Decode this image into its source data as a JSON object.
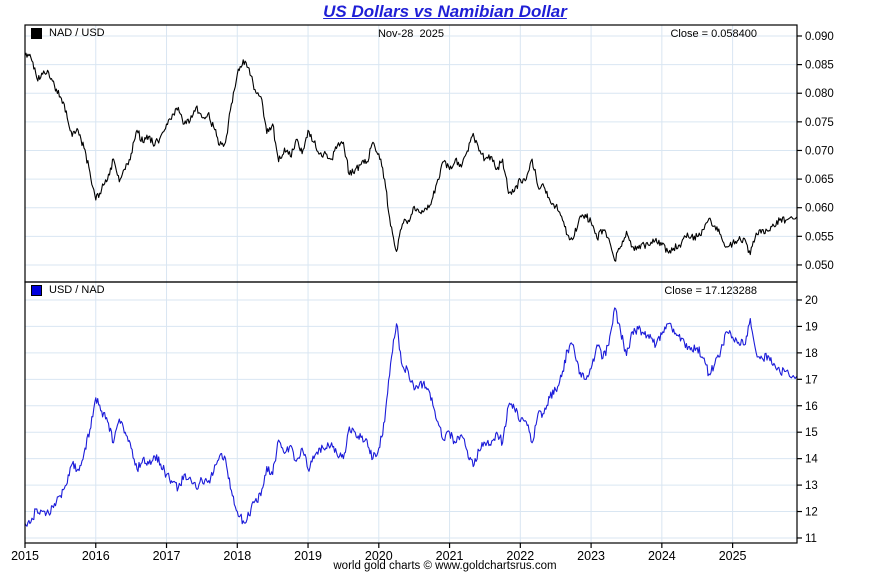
{
  "title": "US Dollars vs Namibian Dollar",
  "footer": "world gold charts © www.goldchartsrus.com",
  "top_panel": {
    "legend": "NAD / USD",
    "date_label": "Nov-28  2025",
    "close_label": "Close = 0.058400"
  },
  "bottom_panel": {
    "legend": "USD / NAD",
    "close_label": "Close = 17.123288"
  },
  "colors": {
    "title": "#1f1fd6",
    "nad_usd_line": "#000000",
    "usd_nad_line": "#1c1cd9",
    "grid": "#d9e6f2",
    "axis": "#000000",
    "swatch_top": "#000000",
    "swatch_bottom": "#0000dd",
    "text": "#000000"
  },
  "chart_data": [
    {
      "type": "line",
      "title": "NAD / USD",
      "legend_position": "top-left-inside",
      "grid": true,
      "x_start_year": 2015.0,
      "x_interval_months": 1,
      "x_end_date": "Nov-28 2025",
      "x_end_year": 2025.91,
      "x_ticks": [
        2015,
        2016,
        2017,
        2018,
        2019,
        2020,
        2021,
        2022,
        2023,
        2024,
        2025
      ],
      "ylim": [
        0.04702,
        0.09192
      ],
      "y_ticks": [
        0.09,
        0.085,
        0.08,
        0.075,
        0.07,
        0.065,
        0.06,
        0.055,
        0.05
      ],
      "y_tick_labels": [
        "0.090",
        "0.085",
        "0.080",
        "0.075",
        "0.070",
        "0.065",
        "0.060",
        "0.055",
        "0.050"
      ],
      "close": 0.0584,
      "values": [
        0.08658,
        0.08621,
        0.08264,
        0.08333,
        0.08368,
        0.0813,
        0.07937,
        0.07692,
        0.07246,
        0.07353,
        0.07042,
        0.06623,
        0.06135,
        0.06329,
        0.06494,
        0.06849,
        0.06452,
        0.06667,
        0.06944,
        0.07353,
        0.07143,
        0.07246,
        0.07092,
        0.07246,
        0.07463,
        0.07634,
        0.07752,
        0.07463,
        0.07519,
        0.07752,
        0.07576,
        0.07634,
        0.07407,
        0.07092,
        0.07143,
        0.07813,
        0.08333,
        0.08584,
        0.08439,
        0.08065,
        0.07937,
        0.07299,
        0.07463,
        0.06803,
        0.07042,
        0.06897,
        0.07194,
        0.06944,
        0.07353,
        0.07143,
        0.06944,
        0.06944,
        0.06849,
        0.07092,
        0.07143,
        0.06579,
        0.06667,
        0.06757,
        0.06803,
        0.07143,
        0.06944,
        0.06494,
        0.05682,
        0.05236,
        0.05714,
        0.0578,
        0.06024,
        0.05917,
        0.05988,
        0.06135,
        0.06494,
        0.06803,
        0.06667,
        0.06849,
        0.06711,
        0.06993,
        0.07299,
        0.06993,
        0.06849,
        0.06897,
        0.06667,
        0.06849,
        0.0625,
        0.06289,
        0.06494,
        0.06494,
        0.06849,
        0.06369,
        0.06369,
        0.06135,
        0.06024,
        0.05848,
        0.05525,
        0.05464,
        0.05814,
        0.05882,
        0.05747,
        0.05464,
        0.05618,
        0.05464,
        0.05076,
        0.05319,
        0.05587,
        0.05319,
        0.05291,
        0.05348,
        0.05348,
        0.05464,
        0.05348,
        0.05236,
        0.05291,
        0.05348,
        0.05495,
        0.05495,
        0.05495,
        0.05618,
        0.05814,
        0.05682,
        0.05525,
        0.05319,
        0.05376,
        0.05435,
        0.05464,
        0.05181,
        0.05556,
        0.05618,
        0.05587,
        0.05682,
        0.0578,
        0.0578,
        0.0584
      ]
    },
    {
      "type": "line",
      "title": "USD / NAD",
      "legend_position": "top-left-inside",
      "grid": true,
      "x_start_year": 2015.0,
      "x_interval_months": 1,
      "x_end_date": "Nov-28 2025",
      "x_end_year": 2025.91,
      "x_ticks": [
        2015,
        2016,
        2017,
        2018,
        2019,
        2020,
        2021,
        2022,
        2023,
        2024,
        2025
      ],
      "ylim": [
        10.81,
        20.68
      ],
      "y_ticks": [
        20,
        19,
        18,
        17,
        16,
        15,
        14,
        13,
        12,
        11
      ],
      "y_tick_labels": [
        "20",
        "19",
        "18",
        "17",
        "16",
        "15",
        "14",
        "13",
        "12",
        "11"
      ],
      "close": 17.123288,
      "values": [
        11.55,
        11.6,
        12.1,
        12.0,
        11.95,
        12.3,
        12.6,
        13.0,
        13.8,
        13.6,
        14.2,
        15.1,
        16.3,
        15.8,
        15.4,
        14.6,
        15.5,
        15.0,
        14.4,
        13.6,
        14.0,
        13.8,
        14.1,
        13.8,
        13.4,
        13.1,
        12.9,
        13.4,
        13.3,
        12.9,
        13.2,
        13.1,
        13.5,
        14.1,
        14.0,
        12.8,
        12.0,
        11.65,
        11.85,
        12.4,
        12.6,
        13.7,
        13.4,
        14.7,
        14.2,
        14.5,
        13.9,
        14.4,
        13.6,
        14.0,
        14.4,
        14.4,
        14.6,
        14.1,
        14.0,
        15.2,
        15.0,
        14.8,
        14.7,
        14.0,
        14.4,
        15.4,
        17.6,
        19.1,
        17.5,
        17.3,
        16.6,
        16.9,
        16.7,
        16.3,
        15.4,
        14.7,
        15.0,
        14.6,
        14.9,
        14.3,
        13.7,
        14.3,
        14.6,
        14.5,
        15.0,
        14.6,
        16.0,
        15.9,
        15.4,
        15.4,
        14.6,
        15.7,
        15.7,
        16.3,
        16.6,
        17.1,
        18.1,
        18.3,
        17.2,
        17.0,
        17.4,
        18.3,
        17.8,
        18.3,
        19.7,
        18.8,
        17.9,
        18.8,
        18.9,
        18.7,
        18.7,
        18.3,
        18.7,
        19.1,
        18.9,
        18.7,
        18.2,
        18.2,
        18.2,
        17.8,
        17.2,
        17.6,
        18.1,
        18.8,
        18.6,
        18.4,
        18.3,
        19.3,
        18.0,
        17.8,
        17.9,
        17.6,
        17.3,
        17.3,
        17.123288
      ]
    }
  ]
}
